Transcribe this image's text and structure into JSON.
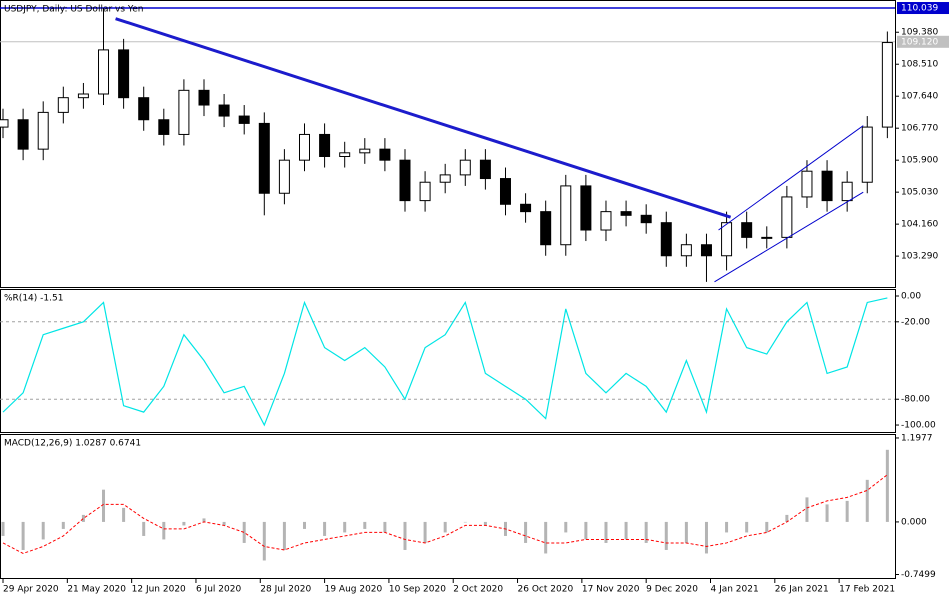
{
  "chart_data": [
    {
      "type": "candlestick",
      "title": "USDJPY, Daily:  US Dollar vs Yen",
      "x": [
        0,
        5,
        10,
        15,
        20,
        25,
        30,
        35,
        40,
        45,
        50,
        55,
        60,
        65,
        70,
        75,
        80,
        85,
        90,
        95,
        100,
        105,
        110,
        115,
        120,
        125,
        130,
        135,
        140,
        145,
        150,
        155,
        160,
        165,
        170,
        175,
        180,
        185,
        190,
        195,
        200,
        205,
        210,
        215,
        220
      ],
      "open": [
        106.8,
        107.0,
        106.2,
        107.2,
        107.6,
        107.7,
        108.9,
        107.6,
        107.0,
        106.6,
        107.8,
        107.4,
        107.1,
        106.9,
        105.0,
        105.9,
        106.6,
        106.0,
        106.1,
        106.2,
        105.9,
        104.8,
        105.3,
        105.5,
        105.9,
        105.4,
        104.7,
        104.5,
        103.6,
        105.2,
        104.0,
        104.5,
        104.4,
        104.2,
        103.3,
        103.6,
        103.3,
        104.2,
        103.8,
        103.8,
        104.9,
        105.6,
        104.8,
        105.3,
        106.8
      ],
      "high": [
        107.3,
        107.3,
        107.5,
        107.9,
        108.0,
        110.04,
        109.2,
        107.9,
        107.3,
        108.1,
        108.1,
        107.7,
        107.4,
        107.2,
        106.2,
        106.9,
        106.9,
        106.4,
        106.5,
        106.5,
        106.2,
        105.6,
        105.8,
        106.2,
        106.2,
        105.7,
        105.0,
        104.8,
        105.5,
        105.5,
        104.8,
        104.8,
        104.7,
        104.5,
        103.9,
        103.9,
        104.5,
        104.5,
        104.1,
        105.2,
        105.9,
        105.9,
        105.6,
        107.1,
        109.4
      ],
      "low": [
        106.5,
        105.9,
        105.9,
        106.9,
        107.3,
        107.4,
        107.3,
        106.7,
        106.3,
        106.3,
        107.1,
        106.8,
        106.6,
        104.4,
        104.7,
        105.6,
        105.7,
        105.7,
        105.8,
        105.6,
        104.5,
        104.5,
        105.0,
        105.2,
        105.1,
        104.4,
        104.2,
        103.3,
        103.3,
        103.7,
        103.7,
        104.1,
        103.9,
        103.0,
        103.0,
        102.59,
        102.9,
        103.5,
        103.5,
        103.5,
        104.6,
        104.5,
        104.5,
        105.0,
        106.5
      ],
      "close": [
        107.0,
        106.2,
        107.2,
        107.6,
        107.7,
        108.9,
        107.6,
        107.0,
        106.6,
        107.8,
        107.4,
        107.1,
        106.9,
        105.0,
        105.9,
        106.6,
        106.0,
        106.1,
        106.2,
        105.9,
        104.8,
        105.3,
        105.5,
        105.9,
        105.4,
        104.7,
        104.5,
        103.6,
        105.2,
        104.0,
        104.5,
        104.4,
        104.2,
        103.3,
        103.6,
        103.3,
        104.2,
        103.8,
        103.8,
        104.9,
        105.6,
        104.8,
        105.3,
        106.8,
        109.1
      ],
      "xlim": [
        -0.75,
        221.9
      ],
      "ylim": [
        102.45,
        110.23
      ],
      "yticks": [
        {
          "value": 109.38,
          "label": "109.380"
        },
        {
          "value": 108.51,
          "label": "108.510"
        },
        {
          "value": 107.64,
          "label": "107.640"
        },
        {
          "value": 106.77,
          "label": "106.770"
        },
        {
          "value": 105.9,
          "label": "105.900"
        },
        {
          "value": 105.03,
          "label": "105.030"
        },
        {
          "value": 104.16,
          "label": "104.160"
        },
        {
          "value": 103.29,
          "label": "103.290"
        }
      ],
      "hline": 110.039,
      "hline_color": "#0000cd",
      "last_price": {
        "value": 109.12,
        "label": "109.120"
      },
      "trendlines": [
        {
          "x": [
            28,
            181
          ],
          "y": [
            109.75,
            104.35
          ],
          "color": "#1c1ccc"
        },
        {
          "x": [
            177,
            214
          ],
          "y": [
            102.59,
            105.03
          ],
          "color": "#0000cd"
        },
        {
          "x": [
            178,
            214
          ],
          "y": [
            104.0,
            106.84
          ],
          "color": "#0000cd"
        }
      ]
    },
    {
      "type": "line",
      "title": "%R(14) -1.51",
      "color": "#00e5e5",
      "x": [
        0,
        5,
        10,
        15,
        20,
        25,
        30,
        35,
        40,
        45,
        50,
        55,
        60,
        65,
        70,
        75,
        80,
        85,
        90,
        95,
        100,
        105,
        110,
        115,
        120,
        125,
        130,
        135,
        140,
        145,
        150,
        155,
        160,
        165,
        170,
        175,
        180,
        185,
        190,
        195,
        200,
        205,
        210,
        215,
        220
      ],
      "values": [
        -90,
        -75,
        -30,
        -25,
        -20,
        -5,
        -85,
        -90,
        -70,
        -30,
        -50,
        -75,
        -70,
        -100,
        -60,
        -5,
        -40,
        -50,
        -40,
        -55,
        -80,
        -40,
        -30,
        -5,
        -60,
        -70,
        -80,
        -95,
        -10,
        -60,
        -75,
        -60,
        -70,
        -90,
        -50,
        -90,
        -10,
        -40,
        -45,
        -20,
        -5,
        -60,
        -55,
        -5,
        -1.51
      ],
      "xlim": [
        -0.75,
        221.9
      ],
      "ylim": [
        -105.4,
        4.65
      ],
      "yticks": [
        {
          "value": 0,
          "label": "0.00"
        },
        {
          "value": -20,
          "label": "-20.00"
        },
        {
          "value": -80,
          "label": "-80.00"
        },
        {
          "value": -100,
          "label": "-100.00"
        }
      ],
      "levels": [
        -20,
        -80
      ]
    },
    {
      "type": "macd",
      "title": "MACD(12,26,9) 1.0287 0.6741",
      "histogram_color": "#b4b4b4",
      "signal_color": "#ff0000",
      "x": [
        0,
        5,
        10,
        15,
        20,
        25,
        30,
        35,
        40,
        45,
        50,
        55,
        60,
        65,
        70,
        75,
        80,
        85,
        90,
        95,
        100,
        105,
        110,
        115,
        120,
        125,
        130,
        135,
        140,
        145,
        150,
        155,
        160,
        165,
        170,
        175,
        180,
        185,
        190,
        195,
        200,
        205,
        210,
        215,
        220
      ],
      "histogram": [
        -0.2,
        -0.4,
        -0.25,
        -0.1,
        0.1,
        0.46,
        0.2,
        -0.2,
        -0.25,
        -0.05,
        0.05,
        -0.05,
        -0.3,
        -0.55,
        -0.4,
        -0.1,
        -0.2,
        -0.15,
        -0.1,
        -0.15,
        -0.4,
        -0.3,
        -0.15,
        0.0,
        -0.05,
        -0.2,
        -0.3,
        -0.45,
        -0.15,
        -0.25,
        -0.3,
        -0.25,
        -0.3,
        -0.4,
        -0.3,
        -0.45,
        -0.15,
        -0.15,
        -0.15,
        0.1,
        0.35,
        0.25,
        0.3,
        0.6,
        1.0287
      ],
      "signal": [
        -0.3,
        -0.45,
        -0.35,
        -0.2,
        0.05,
        0.25,
        0.25,
        0.05,
        -0.1,
        -0.1,
        0.0,
        -0.05,
        -0.15,
        -0.35,
        -0.4,
        -0.3,
        -0.25,
        -0.2,
        -0.15,
        -0.15,
        -0.25,
        -0.3,
        -0.2,
        -0.05,
        -0.05,
        -0.1,
        -0.2,
        -0.3,
        -0.3,
        -0.25,
        -0.25,
        -0.25,
        -0.25,
        -0.3,
        -0.3,
        -0.35,
        -0.3,
        -0.2,
        -0.15,
        0.0,
        0.2,
        0.3,
        0.35,
        0.45,
        0.6741
      ],
      "xlim": [
        -0.75,
        221.9
      ],
      "ylim": [
        -0.8,
        1.24
      ],
      "yticks": [
        1.1977,
        {
          "value": 0,
          "label": "0.000"
        },
        -0.7499
      ],
      "xticks": [
        {
          "value": 0,
          "label": "29 Apr 2020"
        },
        {
          "value": 16,
          "label": "21 May 2020"
        },
        {
          "value": 32,
          "label": "12 Jun 2020"
        },
        {
          "value": 48,
          "label": "6 Jul 2020"
        },
        {
          "value": 64,
          "label": "28 Jul 2020"
        },
        {
          "value": 80,
          "label": "19 Aug 2020"
        },
        {
          "value": 96,
          "label": "10 Sep 2020"
        },
        {
          "value": 112,
          "label": "2 Oct 2020"
        },
        {
          "value": 128,
          "label": "26 Oct 2020"
        },
        {
          "value": 144,
          "label": "17 Nov 2020"
        },
        {
          "value": 160,
          "label": "9 Dec 2020"
        },
        {
          "value": 176,
          "label": "4 Jan 2021"
        },
        {
          "value": 192,
          "label": "26 Jan 2021"
        },
        {
          "value": 208,
          "label": "17 Feb 2021"
        }
      ]
    }
  ]
}
